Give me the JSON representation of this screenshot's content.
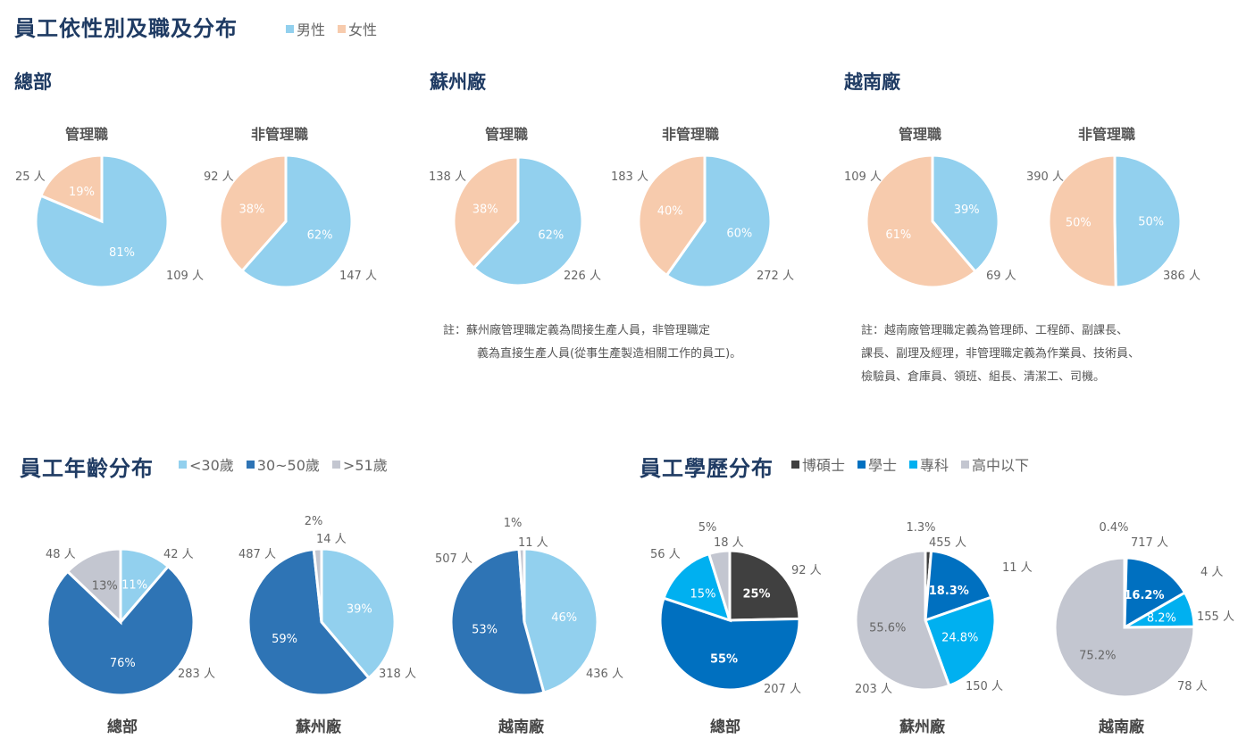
{
  "gender_section": {
    "title": "員工依性別及職及分布",
    "legend": [
      {
        "label": "男性",
        "color": "#92d0ee"
      },
      {
        "label": "女性",
        "color": "#f7cbad"
      }
    ],
    "sites": [
      "總部",
      "蘇州廠",
      "越南廠"
    ],
    "subtitles": [
      "管理職",
      "非管理職"
    ],
    "notes": {
      "suzhou": [
        "註：蘇州廠管理職定義為間接生產人員，非管理職定",
        "義為直接生產人員(從事生產製造相關工作的員工)。"
      ],
      "vietnam": [
        "註：越南廠管理職定義為管理師、工程師、副課長、",
        "課長、副理及經理，非管理職定義為作業員、技術員、",
        "檢驗員、倉庫員、領班、組長、清潔工、司機。"
      ]
    }
  },
  "age_section": {
    "title": "員工年齡分布",
    "legend": [
      {
        "label": "<30歲",
        "color": "#92d0ee"
      },
      {
        "label": "30~50歲",
        "color": "#2e74b5"
      },
      {
        "label": ">51歲",
        "color": "#c3c6d0"
      }
    ],
    "captions": [
      "總部",
      "蘇州廠",
      "越南廠"
    ]
  },
  "edu_section": {
    "title": "員工學歷分布",
    "legend": [
      {
        "label": "博碩士",
        "color": "#404040"
      },
      {
        "label": "學士",
        "color": "#0070c0"
      },
      {
        "label": "專科",
        "color": "#00b0f0"
      },
      {
        "label": "高中以下",
        "color": "#c3c6d0"
      }
    ],
    "captions": [
      "總部",
      "蘇州廠",
      "越南廠"
    ]
  },
  "chart_data": [
    {
      "type": "pie",
      "group": "gender",
      "site": "總部",
      "title": "管理職",
      "series": [
        {
          "name": "男性",
          "value": 109,
          "percent": "81%",
          "label": "109 人",
          "color": "#92d0ee"
        },
        {
          "name": "女性",
          "value": 25,
          "percent": "19%",
          "label": "25 人",
          "color": "#f7cbad"
        }
      ]
    },
    {
      "type": "pie",
      "group": "gender",
      "site": "總部",
      "title": "非管理職",
      "series": [
        {
          "name": "男性",
          "value": 147,
          "percent": "62%",
          "label": "147 人",
          "color": "#92d0ee"
        },
        {
          "name": "女性",
          "value": 92,
          "percent": "38%",
          "label": "92 人",
          "color": "#f7cbad"
        }
      ]
    },
    {
      "type": "pie",
      "group": "gender",
      "site": "蘇州廠",
      "title": "管理職",
      "series": [
        {
          "name": "男性",
          "value": 226,
          "percent": "62%",
          "label": "226 人",
          "color": "#92d0ee"
        },
        {
          "name": "女性",
          "value": 138,
          "percent": "38%",
          "label": "138 人",
          "color": "#f7cbad"
        }
      ]
    },
    {
      "type": "pie",
      "group": "gender",
      "site": "蘇州廠",
      "title": "非管理職",
      "series": [
        {
          "name": "男性",
          "value": 272,
          "percent": "60%",
          "label": "272 人",
          "color": "#92d0ee"
        },
        {
          "name": "女性",
          "value": 183,
          "percent": "40%",
          "label": "183 人",
          "color": "#f7cbad"
        }
      ]
    },
    {
      "type": "pie",
      "group": "gender",
      "site": "越南廠",
      "title": "管理職",
      "series": [
        {
          "name": "男性",
          "value": 69,
          "percent": "39%",
          "label": "69 人",
          "color": "#92d0ee"
        },
        {
          "name": "女性",
          "value": 109,
          "percent": "61%",
          "label": "109 人",
          "color": "#f7cbad"
        }
      ]
    },
    {
      "type": "pie",
      "group": "gender",
      "site": "越南廠",
      "title": "非管理職",
      "series": [
        {
          "name": "男性",
          "value": 386,
          "percent": "50%",
          "label": "386 人",
          "color": "#92d0ee"
        },
        {
          "name": "女性",
          "value": 390,
          "percent": "50%",
          "label": "390 人",
          "color": "#f7cbad"
        }
      ]
    },
    {
      "type": "pie",
      "group": "age",
      "site": "總部",
      "series": [
        {
          "name": "<30歲",
          "value": 42,
          "percent": "11%",
          "label": "42 人",
          "color": "#92d0ee"
        },
        {
          "name": "30~50歲",
          "value": 283,
          "percent": "76%",
          "label": "283 人",
          "color": "#2e74b5"
        },
        {
          "name": ">51歲",
          "value": 48,
          "percent": "13%",
          "label": "48 人",
          "color": "#c3c6d0"
        }
      ]
    },
    {
      "type": "pie",
      "group": "age",
      "site": "蘇州廠",
      "series": [
        {
          "name": "<30歲",
          "value": 318,
          "percent": "39%",
          "label": "318 人",
          "color": "#92d0ee"
        },
        {
          "name": "30~50歲",
          "value": 487,
          "percent": "59%",
          "label": "487 人",
          "color": "#2e74b5"
        },
        {
          "name": ">51歲",
          "value": 14,
          "percent": "2%",
          "label": "14 人",
          "color": "#c3c6d0"
        }
      ]
    },
    {
      "type": "pie",
      "group": "age",
      "site": "越南廠",
      "series": [
        {
          "name": "<30歲",
          "value": 436,
          "percent": "46%",
          "label": "436 人",
          "color": "#92d0ee"
        },
        {
          "name": "30~50歲",
          "value": 507,
          "percent": "53%",
          "label": "507 人",
          "color": "#2e74b5"
        },
        {
          "name": ">51歲",
          "value": 11,
          "percent": "1%",
          "label": "11 人",
          "color": "#c3c6d0"
        }
      ]
    },
    {
      "type": "pie",
      "group": "education",
      "site": "總部",
      "series": [
        {
          "name": "博碩士",
          "value": 92,
          "percent": "25%",
          "label": "92 人",
          "color": "#404040"
        },
        {
          "name": "學士",
          "value": 207,
          "percent": "55%",
          "label": "207 人",
          "color": "#0070c0"
        },
        {
          "name": "專科",
          "value": 56,
          "percent": "15%",
          "label": "56 人",
          "color": "#00b0f0"
        },
        {
          "name": "高中以下",
          "value": 18,
          "percent": "5%",
          "label": "18 人",
          "color": "#c3c6d0"
        }
      ]
    },
    {
      "type": "pie",
      "group": "education",
      "site": "蘇州廠",
      "series": [
        {
          "name": "博碩士",
          "value": 11,
          "percent": "1.3%",
          "label": "11 人",
          "color": "#404040"
        },
        {
          "name": "學士",
          "value": 150,
          "percent": "18.3%",
          "label": "150 人",
          "color": "#0070c0"
        },
        {
          "name": "專科",
          "value": 203,
          "percent": "24.8%",
          "label": "203 人",
          "color": "#00b0f0"
        },
        {
          "name": "高中以下",
          "value": 455,
          "percent": "55.6%",
          "label": "455 人",
          "color": "#c3c6d0"
        }
      ]
    },
    {
      "type": "pie",
      "group": "education",
      "site": "越南廠",
      "series": [
        {
          "name": "博碩士",
          "value": 4,
          "percent": "0.4%",
          "label": "4 人",
          "color": "#404040"
        },
        {
          "name": "學士",
          "value": 155,
          "percent": "16.2%",
          "label": "155 人",
          "color": "#0070c0"
        },
        {
          "name": "專科",
          "value": 78,
          "percent": "8.2%",
          "label": "78 人",
          "color": "#00b0f0"
        },
        {
          "name": "高中以下",
          "value": 717,
          "percent": "75.2%",
          "label": "717 人",
          "color": "#c3c6d0"
        }
      ]
    }
  ]
}
